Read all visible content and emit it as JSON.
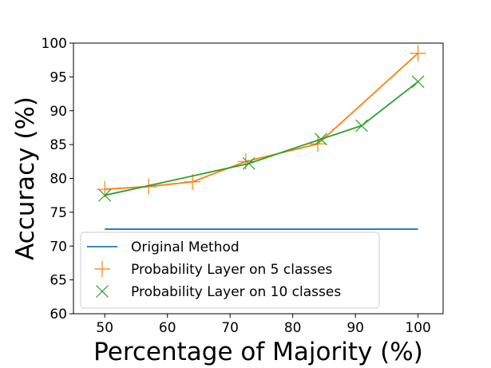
{
  "chart_data": {
    "type": "line",
    "title": "",
    "xlabel": "Percentage of Majority (%)",
    "ylabel": "Accuracy (%)",
    "xlim": [
      45,
      104
    ],
    "ylim": [
      60,
      100
    ],
    "xticks": [
      50,
      60,
      70,
      80,
      90,
      100
    ],
    "yticks": [
      60,
      65,
      70,
      75,
      80,
      85,
      90,
      95,
      100
    ],
    "grid": false,
    "legend_position": "lower-left",
    "series": [
      {
        "name": "Original Method",
        "color": "#1f77b4",
        "marker": "none",
        "x": [
          50,
          100
        ],
        "y": [
          72.5,
          72.5
        ]
      },
      {
        "name": "Probability Layer on 5 classes",
        "color": "#ff7f0e",
        "marker": "plus",
        "x": [
          50,
          57,
          64,
          72.5,
          84,
          100
        ],
        "y": [
          78.4,
          78.8,
          79.5,
          82.5,
          85.1,
          98.5
        ]
      },
      {
        "name": "Probability Layer on 10 classes",
        "color": "#2ca02c",
        "marker": "x",
        "x": [
          50,
          73,
          84.5,
          91,
          100
        ],
        "y": [
          77.5,
          82.2,
          85.8,
          87.8,
          94.3
        ]
      }
    ]
  }
}
